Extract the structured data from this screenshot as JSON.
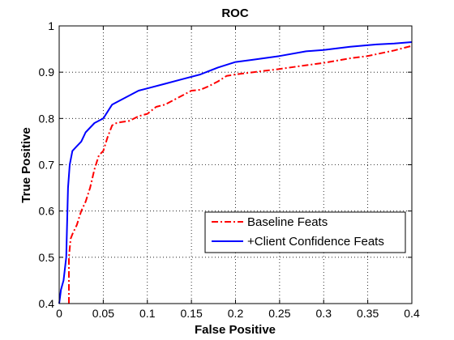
{
  "chart_data": {
    "type": "line",
    "title": "ROC",
    "xlabel": "False Positive",
    "ylabel": "True Positive",
    "xlim": [
      0,
      0.4
    ],
    "ylim": [
      0.4,
      1.0
    ],
    "xticks": [
      0,
      0.05,
      0.1,
      0.15,
      0.2,
      0.25,
      0.3,
      0.35,
      0.4
    ],
    "xtick_labels": [
      "0",
      "0.05",
      "0.1",
      "0.15",
      "0.2",
      "0.25",
      "0.3",
      "0.35",
      "0.4"
    ],
    "yticks": [
      0.4,
      0.5,
      0.6,
      0.7,
      0.8,
      0.9,
      1.0
    ],
    "ytick_labels": [
      "0.4",
      "0.5",
      "0.6",
      "0.7",
      "0.8",
      "0.9",
      "1"
    ],
    "grid": true,
    "legend_position": "lower-right",
    "series": [
      {
        "name": "Baseline Feats",
        "color": "#ff0000",
        "style": "dash-dot",
        "x": [
          0.011,
          0.011,
          0.013,
          0.015,
          0.02,
          0.025,
          0.03,
          0.035,
          0.04,
          0.045,
          0.05,
          0.055,
          0.06,
          0.065,
          0.07,
          0.08,
          0.09,
          0.1,
          0.11,
          0.12,
          0.13,
          0.14,
          0.15,
          0.16,
          0.17,
          0.18,
          0.19,
          0.2,
          0.22,
          0.25,
          0.28,
          0.3,
          0.33,
          0.35,
          0.38,
          0.4
        ],
        "y": [
          0.4,
          0.5,
          0.54,
          0.55,
          0.57,
          0.6,
          0.62,
          0.65,
          0.69,
          0.72,
          0.73,
          0.76,
          0.785,
          0.79,
          0.792,
          0.795,
          0.805,
          0.81,
          0.825,
          0.83,
          0.84,
          0.85,
          0.86,
          0.862,
          0.87,
          0.88,
          0.892,
          0.895,
          0.9,
          0.907,
          0.915,
          0.92,
          0.93,
          0.935,
          0.947,
          0.957
        ]
      },
      {
        "name": "+Client Confidence Feats",
        "color": "#0000ff",
        "style": "solid",
        "x": [
          0.0,
          0.002,
          0.005,
          0.008,
          0.01,
          0.012,
          0.015,
          0.02,
          0.025,
          0.03,
          0.04,
          0.05,
          0.055,
          0.06,
          0.07,
          0.08,
          0.09,
          0.1,
          0.12,
          0.14,
          0.16,
          0.18,
          0.2,
          0.22,
          0.25,
          0.28,
          0.3,
          0.33,
          0.36,
          0.38,
          0.4
        ],
        "y": [
          0.4,
          0.43,
          0.45,
          0.5,
          0.65,
          0.7,
          0.73,
          0.74,
          0.75,
          0.77,
          0.79,
          0.8,
          0.815,
          0.83,
          0.84,
          0.85,
          0.86,
          0.865,
          0.875,
          0.885,
          0.895,
          0.91,
          0.922,
          0.927,
          0.935,
          0.945,
          0.948,
          0.955,
          0.96,
          0.962,
          0.965
        ]
      }
    ]
  }
}
